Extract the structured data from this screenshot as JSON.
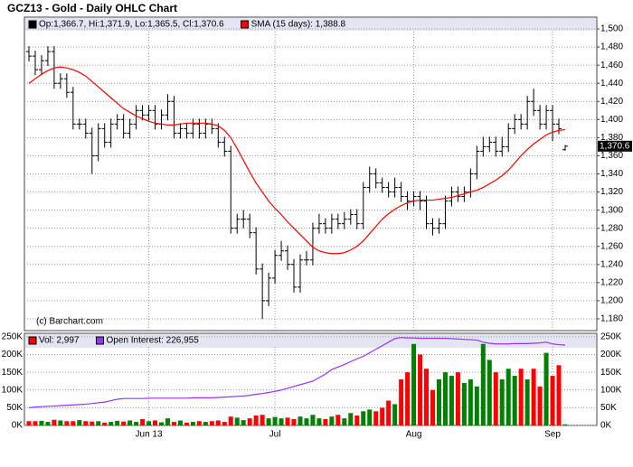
{
  "chart_data": [
    {
      "type": "ohlc",
      "title": "GCZ13 - Gold - Daily OHLC Chart",
      "source": "(c) Barchart.com",
      "last_value_label": "1,370.6",
      "ylim": [
        1167,
        1512
      ],
      "yticks": [
        {
          "value": 1180,
          "label": "1,180"
        },
        {
          "value": 1200,
          "label": "1,200"
        },
        {
          "value": 1220,
          "label": "1,220"
        },
        {
          "value": 1240,
          "label": "1,240"
        },
        {
          "value": 1260,
          "label": "1,260"
        },
        {
          "value": 1280,
          "label": "1,280"
        },
        {
          "value": 1300,
          "label": "1,300"
        },
        {
          "value": 1320,
          "label": "1,320"
        },
        {
          "value": 1340,
          "label": "1,340"
        },
        {
          "value": 1360,
          "label": "1,360"
        },
        {
          "value": 1380,
          "label": "1,380"
        },
        {
          "value": 1400,
          "label": "1,400"
        },
        {
          "value": 1420,
          "label": "1,420"
        },
        {
          "value": 1440,
          "label": "1,440"
        },
        {
          "value": 1460,
          "label": "1,460"
        },
        {
          "value": 1480,
          "label": "1,480"
        },
        {
          "value": 1500,
          "label": "1,500"
        }
      ],
      "grid": true,
      "series": [
        {
          "name": "Op:1,366.7, Hi:1,371.9, Lo:1,365.5, Cl:1,370.6",
          "color": "#000000",
          "open": [
            1475,
            1470,
            1455,
            1465,
            1475,
            1440,
            1445,
            1430,
            1395,
            1395,
            1385,
            1360,
            1390,
            1375,
            1395,
            1400,
            1385,
            1395,
            1410,
            1405,
            1410,
            1395,
            1405,
            1420,
            1385,
            1390,
            1385,
            1395,
            1385,
            1395,
            1390,
            1375,
            1365,
            1280,
            1290,
            1290,
            1275,
            1235,
            1200,
            1225,
            1250,
            1255,
            1240,
            1215,
            1245,
            1245,
            1280,
            1285,
            1280,
            1290,
            1285,
            1290,
            1295,
            1285,
            1325,
            1340,
            1330,
            1325,
            1320,
            1325,
            1315,
            1310,
            1315,
            1310,
            1285,
            1280,
            1285,
            1310,
            1320,
            1315,
            1320,
            1340,
            1365,
            1370,
            1375,
            1365,
            1370,
            1390,
            1400,
            1395,
            1420,
            1410,
            1395,
            1410,
            1395,
            1366.7
          ],
          "high": [
            1481,
            1476,
            1471,
            1481,
            1481,
            1451,
            1451,
            1436,
            1401,
            1401,
            1391,
            1396,
            1396,
            1401,
            1406,
            1406,
            1401,
            1416,
            1416,
            1416,
            1416,
            1411,
            1428,
            1426,
            1396,
            1396,
            1401,
            1401,
            1401,
            1401,
            1396,
            1381,
            1371,
            1296,
            1300,
            1296,
            1281,
            1241,
            1231,
            1256,
            1266,
            1261,
            1246,
            1251,
            1255,
            1286,
            1296,
            1291,
            1296,
            1296,
            1298,
            1301,
            1301,
            1331,
            1348,
            1346,
            1336,
            1331,
            1336,
            1331,
            1321,
            1321,
            1321,
            1316,
            1291,
            1291,
            1316,
            1326,
            1326,
            1326,
            1346,
            1371,
            1381,
            1381,
            1381,
            1381,
            1396,
            1406,
            1406,
            1426,
            1434,
            1416,
            1416,
            1416,
            1401,
            1371.9
          ],
          "low": [
            1464,
            1449,
            1449,
            1459,
            1434,
            1434,
            1424,
            1389,
            1389,
            1379,
            1340,
            1354,
            1369,
            1369,
            1389,
            1379,
            1379,
            1389,
            1399,
            1399,
            1389,
            1389,
            1399,
            1379,
            1379,
            1379,
            1379,
            1379,
            1379,
            1384,
            1369,
            1359,
            1274,
            1274,
            1280,
            1269,
            1229,
            1180,
            1194,
            1219,
            1244,
            1234,
            1209,
            1209,
            1239,
            1239,
            1274,
            1274,
            1274,
            1279,
            1279,
            1284,
            1279,
            1279,
            1319,
            1324,
            1319,
            1314,
            1314,
            1309,
            1300,
            1304,
            1300,
            1279,
            1272,
            1274,
            1279,
            1304,
            1309,
            1309,
            1314,
            1334,
            1359,
            1364,
            1359,
            1359,
            1364,
            1384,
            1389,
            1389,
            1404,
            1389,
            1389,
            1376,
            1384,
            1365.5
          ],
          "close": [
            1470,
            1455,
            1465,
            1475,
            1440,
            1445,
            1430,
            1395,
            1395,
            1385,
            1360,
            1390,
            1375,
            1395,
            1400,
            1385,
            1395,
            1410,
            1405,
            1410,
            1395,
            1405,
            1420,
            1385,
            1390,
            1385,
            1395,
            1385,
            1395,
            1390,
            1375,
            1365,
            1280,
            1290,
            1290,
            1275,
            1235,
            1200,
            1225,
            1250,
            1255,
            1240,
            1215,
            1245,
            1245,
            1280,
            1285,
            1280,
            1290,
            1285,
            1290,
            1295,
            1285,
            1325,
            1340,
            1330,
            1325,
            1320,
            1325,
            1315,
            1310,
            1315,
            1310,
            1285,
            1280,
            1285,
            1310,
            1320,
            1315,
            1320,
            1340,
            1365,
            1370,
            1375,
            1365,
            1370,
            1390,
            1400,
            1395,
            1420,
            1410,
            1395,
            1410,
            1395,
            1390,
            1370.6
          ]
        },
        {
          "name": "SMA (15 days): 1,388.8",
          "color": "#ff0000",
          "values": [
            1440,
            1445,
            1450,
            1454,
            1457,
            1458,
            1457,
            1455,
            1452,
            1448,
            1442,
            1436,
            1430,
            1424,
            1418,
            1412,
            1408,
            1404,
            1401,
            1398,
            1396,
            1395,
            1394,
            1394,
            1395,
            1396,
            1396,
            1396,
            1396,
            1395,
            1393,
            1388,
            1380,
            1368,
            1355,
            1342,
            1330,
            1320,
            1310,
            1302,
            1295,
            1287,
            1280,
            1273,
            1266,
            1259,
            1255,
            1253,
            1252,
            1252,
            1253,
            1256,
            1260,
            1266,
            1274,
            1282,
            1290,
            1296,
            1301,
            1305,
            1308,
            1310,
            1311,
            1311,
            1311,
            1312,
            1313,
            1314,
            1316,
            1318,
            1320,
            1322,
            1325,
            1329,
            1333,
            1338,
            1344,
            1352,
            1360,
            1367,
            1373,
            1378,
            1383,
            1386,
            1388,
            1388.8
          ]
        }
      ]
    },
    {
      "type": "volume",
      "categories": [
        null,
        null,
        null,
        null,
        null,
        null,
        null,
        null,
        null,
        null,
        null,
        null,
        null,
        null,
        null,
        null,
        null,
        null,
        null,
        "Jun 13",
        null,
        null,
        null,
        null,
        null,
        null,
        null,
        null,
        null,
        null,
        null,
        null,
        null,
        null,
        null,
        null,
        null,
        null,
        null,
        "Jul",
        null,
        null,
        null,
        null,
        null,
        null,
        null,
        null,
        null,
        null,
        null,
        null,
        null,
        null,
        null,
        null,
        null,
        null,
        null,
        null,
        null,
        "Aug",
        null,
        null,
        null,
        null,
        null,
        null,
        null,
        null,
        null,
        null,
        null,
        null,
        null,
        null,
        null,
        null,
        null,
        null,
        null,
        null,
        null,
        "Sep",
        null,
        null
      ],
      "ylim": [
        0,
        260000
      ],
      "yticks": [
        {
          "value": 0,
          "label": "0K"
        },
        {
          "value": 50000,
          "label": "50K"
        },
        {
          "value": 100000,
          "label": "100K"
        },
        {
          "value": 150000,
          "label": "150K"
        },
        {
          "value": 200000,
          "label": "200K"
        },
        {
          "value": 250000,
          "label": "250K"
        }
      ],
      "grid": true,
      "up_color": "#008000",
      "down_color": "#ff0000",
      "series": [
        {
          "name": "Vol: 2,997",
          "color": "#ff0000",
          "values": [
            12000,
            12000,
            13000,
            10000,
            16000,
            14000,
            12000,
            12000,
            15000,
            12000,
            11000,
            12000,
            8000,
            10000,
            13000,
            11000,
            14000,
            10000,
            18000,
            12000,
            14000,
            9000,
            20000,
            10000,
            14000,
            8000,
            10000,
            12000,
            10000,
            12000,
            14000,
            10000,
            25000,
            22000,
            15000,
            20000,
            28000,
            30000,
            20000,
            24000,
            20000,
            22000,
            18000,
            25000,
            20000,
            30000,
            20000,
            18000,
            25000,
            30000,
            20000,
            35000,
            28000,
            40000,
            45000,
            40000,
            50000,
            70000,
            60000,
            130000,
            150000,
            230000,
            200000,
            160000,
            100000,
            130000,
            150000,
            140000,
            150000,
            120000,
            130000,
            110000,
            230000,
            185000,
            150000,
            130000,
            160000,
            140000,
            160000,
            130000,
            160000,
            110000,
            205000,
            140000,
            170000,
            2997
          ]
        },
        {
          "name": "Open Interest: 226,955",
          "color": "#9933ff",
          "values": [
            50000,
            52000,
            53000,
            54000,
            55000,
            56000,
            57000,
            58000,
            59000,
            60000,
            62000,
            64000,
            66000,
            70000,
            74000,
            76000,
            76000,
            76000,
            76000,
            77000,
            77000,
            77000,
            77000,
            77000,
            77000,
            77000,
            78000,
            78000,
            78000,
            78000,
            79000,
            80000,
            81000,
            82000,
            83000,
            85000,
            88000,
            90000,
            93000,
            96000,
            100000,
            105000,
            110000,
            115000,
            120000,
            125000,
            135000,
            145000,
            158000,
            165000,
            172000,
            180000,
            188000,
            195000,
            205000,
            215000,
            225000,
            235000,
            245000,
            248000,
            247000,
            247000,
            246000,
            246000,
            246000,
            246000,
            246000,
            245000,
            244000,
            243000,
            242000,
            241000,
            235000,
            232000,
            230000,
            230000,
            230000,
            231000,
            231000,
            231000,
            232000,
            233000,
            235000,
            230000,
            228000,
            226955
          ]
        }
      ]
    }
  ]
}
